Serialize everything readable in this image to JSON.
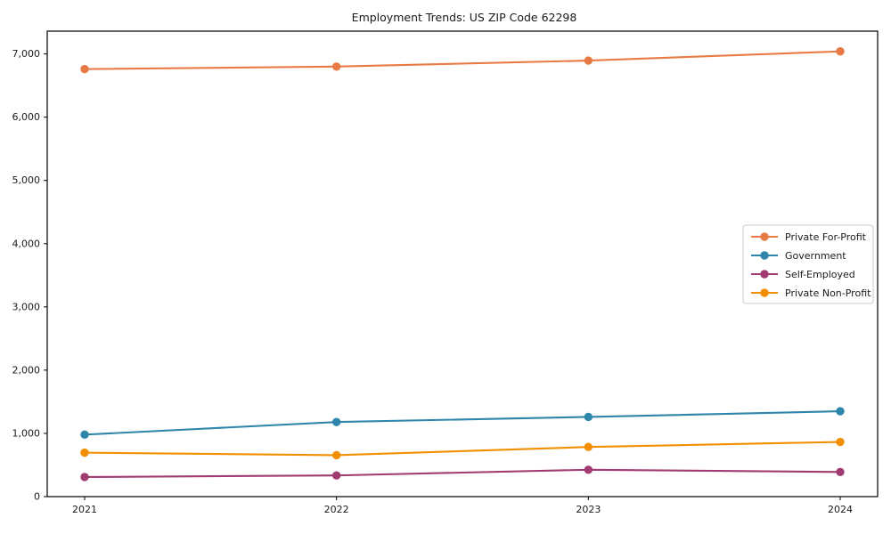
{
  "window": {
    "title": "Employment Trends: US ZIP Code 62298"
  },
  "chart_data": {
    "type": "line",
    "title": "Employment Trends: US ZIP Code 62298",
    "xlabel": "",
    "ylabel": "",
    "categories": [
      "2021",
      "2022",
      "2023",
      "2024"
    ],
    "series": [
      {
        "name": "Private For-Profit",
        "color": "#E87A45",
        "values": [
          6760,
          6800,
          6895,
          7040
        ]
      },
      {
        "name": "Government",
        "color": "#2E86AB",
        "values": [
          980,
          1180,
          1260,
          1350
        ]
      },
      {
        "name": "Self-Employed",
        "color": "#A23B72",
        "values": [
          310,
          335,
          425,
          390
        ]
      },
      {
        "name": "Private Non-Profit",
        "color": "#F18F01",
        "values": [
          695,
          655,
          785,
          865
        ]
      }
    ],
    "ylim": [
      0,
      7360
    ],
    "yticks": [
      0,
      1000,
      2000,
      3000,
      4000,
      5000,
      6000,
      7000
    ],
    "ytick_labels": [
      "0",
      "1,000",
      "2,000",
      "3,000",
      "4,000",
      "5,000",
      "6,000",
      "7,000"
    ],
    "grid": false,
    "legend_position": "right-center",
    "frame_color": "#000000",
    "text_color": "#1a1a1a",
    "legend_border_color": "#cccccc"
  }
}
